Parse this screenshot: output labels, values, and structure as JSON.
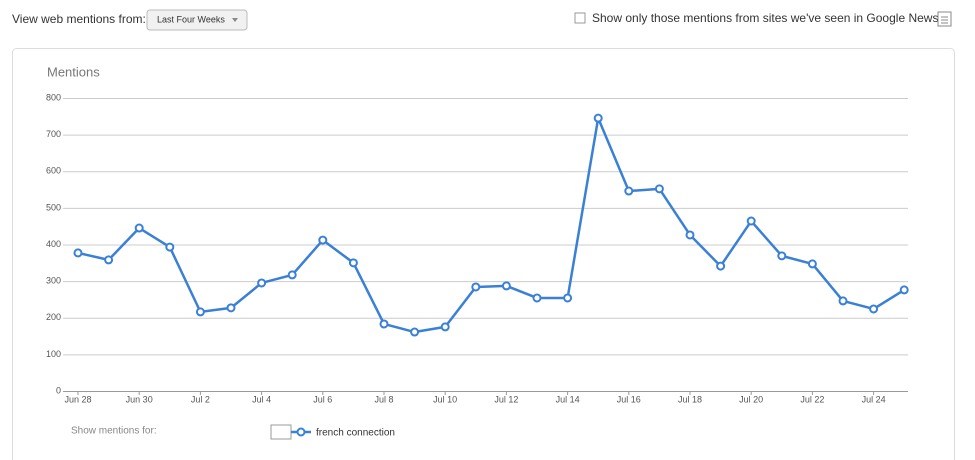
{
  "controls": {
    "range_label": "View web mentions from:",
    "range_value": "Last Four Weeks",
    "news_filter": "Show only those mentions from sites we've seen in Google News",
    "legend_label": "Show mentions for:"
  },
  "chart_data": {
    "type": "line",
    "title": "Mentions",
    "categories": [
      "Jun 28",
      null,
      "Jun 30",
      null,
      "Jul 2",
      null,
      "Jul 4",
      null,
      "Jul 6",
      null,
      "Jul 8",
      null,
      "Jul 10",
      null,
      "Jul 12",
      null,
      "Jul 14",
      null,
      "Jul 16",
      null,
      "Jul 18",
      null,
      "Jul 20",
      null,
      "Jul 22",
      null,
      "Jul 24",
      null
    ],
    "series": [
      {
        "name": "french connection",
        "color": "#3a80d6",
        "values": [
          377,
          358,
          445,
          393,
          216,
          227,
          295,
          317,
          412,
          350,
          183,
          161,
          175,
          284,
          287,
          254,
          254,
          745,
          546,
          552,
          426,
          341,
          464,
          369,
          347,
          246,
          224,
          276
        ]
      }
    ],
    "ylim": [
      0,
      800
    ],
    "yticks": [
      0,
      100,
      200,
      300,
      400,
      500,
      600,
      700,
      800
    ],
    "grid": true
  }
}
